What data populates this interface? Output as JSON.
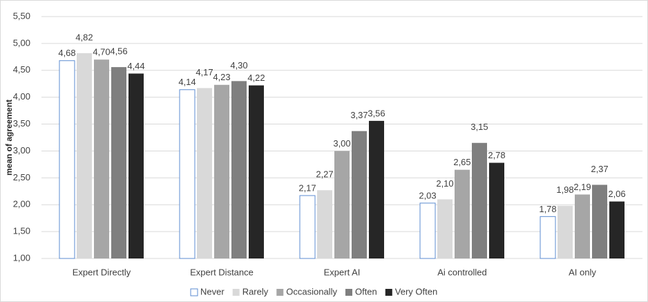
{
  "chart_data": {
    "type": "bar",
    "y_label": "mean of agreement",
    "categories": [
      "Expert Directly",
      "Expert Distance",
      "Expert AI",
      "Ai controlled",
      "AI only"
    ],
    "series": [
      {
        "name": "Never",
        "color": "#ffffff",
        "stroke": "#5b8bd0",
        "values": [
          4.68,
          4.14,
          2.17,
          2.03,
          1.78
        ],
        "value_labels": [
          "4,68",
          "4,14",
          "2,17",
          "2,03",
          "1,78"
        ]
      },
      {
        "name": "Rarely",
        "color": "#d9d9d9",
        "values": [
          4.82,
          4.17,
          2.27,
          2.1,
          1.98
        ],
        "value_labels": [
          "4,82",
          "4,17",
          "2,27",
          "2,10",
          "1,98"
        ]
      },
      {
        "name": "Occasionally",
        "color": "#a6a6a6",
        "values": [
          4.7,
          4.23,
          3.0,
          2.65,
          2.19
        ],
        "value_labels": [
          "4,70",
          "4,23",
          "3,00",
          "2,65",
          "2,19"
        ]
      },
      {
        "name": "Often",
        "color": "#7f7f7f",
        "values": [
          4.56,
          4.3,
          3.37,
          3.15,
          2.37
        ],
        "value_labels": [
          "4,56",
          "4,30",
          "3,37",
          "3,15",
          "2,37"
        ]
      },
      {
        "name": "Very Often",
        "color": "#262626",
        "values": [
          4.44,
          4.22,
          3.56,
          2.78,
          2.06
        ],
        "value_labels": [
          "4,44",
          "4,22",
          "3,56",
          "2,78",
          "2,06"
        ]
      }
    ],
    "ylim": [
      1.0,
      5.5
    ],
    "yticks": [
      {
        "value": 1.0,
        "label": "1,00"
      },
      {
        "value": 1.5,
        "label": "1,50"
      },
      {
        "value": 2.0,
        "label": "2,00"
      },
      {
        "value": 2.5,
        "label": "2,50"
      },
      {
        "value": 3.0,
        "label": "3,00"
      },
      {
        "value": 3.5,
        "label": "3,50"
      },
      {
        "value": 4.0,
        "label": "4,00"
      },
      {
        "value": 4.5,
        "label": "4,50"
      },
      {
        "value": 5.0,
        "label": "5,00"
      },
      {
        "value": 5.5,
        "label": "5,50"
      }
    ],
    "grid": true,
    "legend": "bottom"
  }
}
